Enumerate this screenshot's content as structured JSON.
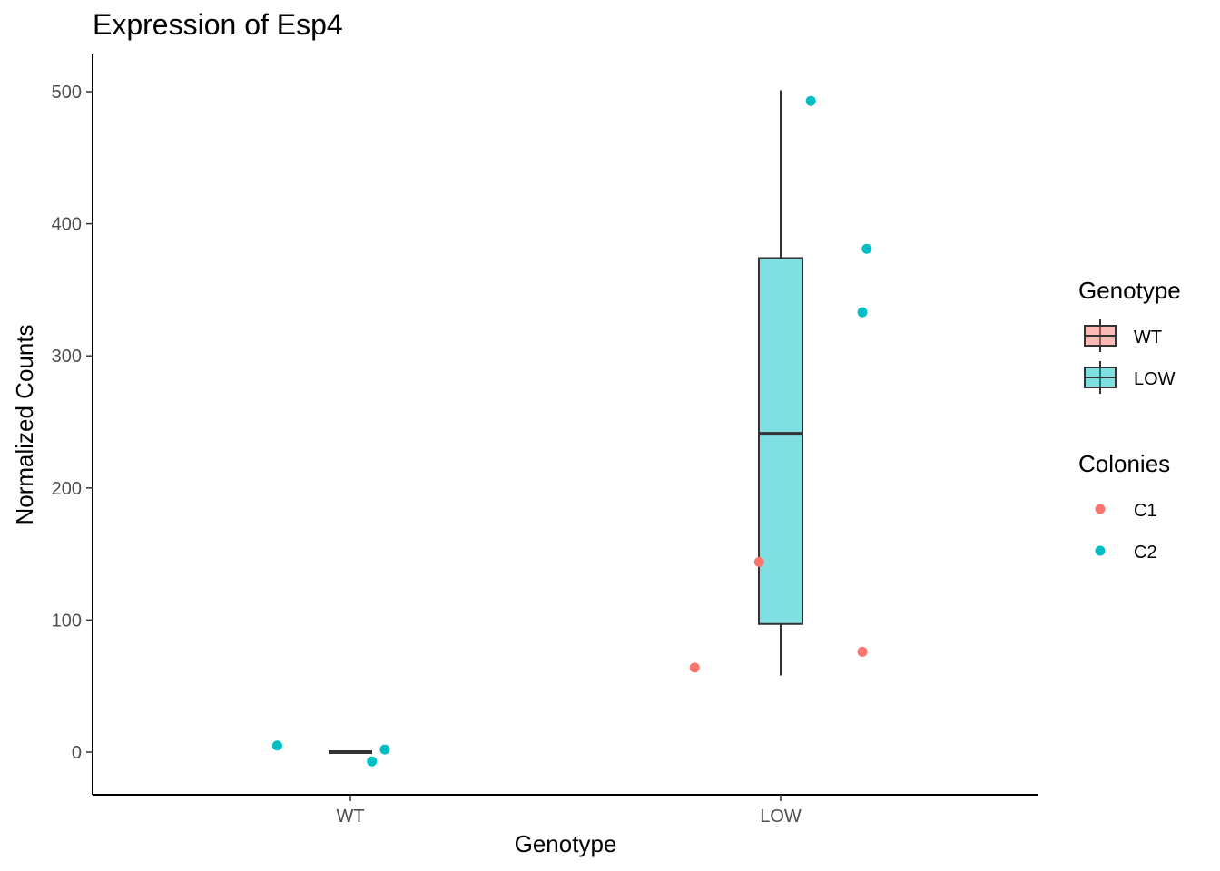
{
  "chart_data": {
    "type": "box",
    "title": "Expression of Esp4",
    "xlabel": "Genotype",
    "ylabel": "Normalized Counts",
    "categories": [
      "WT",
      "LOW"
    ],
    "ylim": [
      -32,
      526
    ],
    "yticks": [
      0,
      100,
      200,
      300,
      400,
      500
    ],
    "boxes": [
      {
        "category": "WT",
        "min": 0,
        "q1": 0,
        "median": 0,
        "q3": 0,
        "max": 0,
        "fill": "#F8766D"
      },
      {
        "category": "LOW",
        "min": 58,
        "q1": 97,
        "median": 241,
        "q3": 374,
        "max": 501,
        "fill": "#00BFC4"
      }
    ],
    "points": [
      {
        "category": "WT",
        "x_jitter": -0.17,
        "y": 5,
        "colony": "C2"
      },
      {
        "category": "WT",
        "x_jitter": 0.05,
        "y": -7,
        "colony": "C2"
      },
      {
        "category": "WT",
        "x_jitter": 0.08,
        "y": 2,
        "colony": "C2"
      },
      {
        "category": "LOW",
        "x_jitter": -0.2,
        "y": 64,
        "colony": "C1"
      },
      {
        "category": "LOW",
        "x_jitter": -0.05,
        "y": 144,
        "colony": "C1"
      },
      {
        "category": "LOW",
        "x_jitter": 0.19,
        "y": 76,
        "colony": "C1"
      },
      {
        "category": "LOW",
        "x_jitter": 0.07,
        "y": 493,
        "colony": "C2"
      },
      {
        "category": "LOW",
        "x_jitter": 0.2,
        "y": 381,
        "colony": "C2"
      },
      {
        "category": "LOW",
        "x_jitter": 0.19,
        "y": 333,
        "colony": "C2"
      }
    ],
    "legend_genotype": {
      "title": "Genotype",
      "items": [
        {
          "label": "WT",
          "color": "#F8766D"
        },
        {
          "label": "LOW",
          "color": "#00BFC4"
        }
      ]
    },
    "legend_colonies": {
      "title": "Colonies",
      "items": [
        {
          "label": "C1",
          "color": "#F8766D"
        },
        {
          "label": "C2",
          "color": "#00BFC4"
        }
      ]
    },
    "legend_position": "right",
    "grid": false
  }
}
